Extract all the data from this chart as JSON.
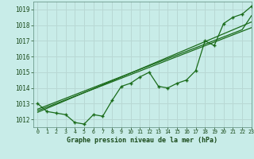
{
  "title": "Graphe pression niveau de la mer (hPa)",
  "bg_color": "#c8ece8",
  "grid_color": "#b8d8d4",
  "line_color": "#1a6b1a",
  "xlim": [
    -0.5,
    23
  ],
  "ylim": [
    1011.5,
    1019.5
  ],
  "yticks": [
    1012,
    1013,
    1014,
    1015,
    1016,
    1017,
    1018,
    1019
  ],
  "xticks": [
    0,
    1,
    2,
    3,
    4,
    5,
    6,
    7,
    8,
    9,
    10,
    11,
    12,
    13,
    14,
    15,
    16,
    17,
    18,
    19,
    20,
    21,
    22,
    23
  ],
  "main_line": [
    1013.0,
    1012.5,
    1012.4,
    1012.3,
    1011.8,
    1011.7,
    1012.3,
    1012.2,
    1013.2,
    1014.1,
    1014.3,
    1014.7,
    1015.0,
    1014.1,
    1014.0,
    1014.3,
    1014.5,
    1015.1,
    1017.0,
    1016.7,
    1018.1,
    1018.5,
    1018.7,
    1019.2
  ],
  "straight_line1": [
    1012.55,
    1012.78,
    1013.01,
    1013.24,
    1013.47,
    1013.7,
    1013.93,
    1014.16,
    1014.39,
    1014.62,
    1014.85,
    1015.08,
    1015.31,
    1015.54,
    1015.77,
    1016.0,
    1016.23,
    1016.46,
    1016.69,
    1016.92,
    1017.15,
    1017.38,
    1017.61,
    1017.84
  ],
  "straight_line2": [
    1012.45,
    1012.7,
    1012.95,
    1013.2,
    1013.45,
    1013.7,
    1013.95,
    1014.2,
    1014.45,
    1014.7,
    1014.95,
    1015.2,
    1015.45,
    1015.7,
    1015.95,
    1016.2,
    1016.45,
    1016.7,
    1016.95,
    1017.2,
    1017.45,
    1017.7,
    1017.95,
    1018.2
  ],
  "straight_line3": [
    1012.65,
    1012.88,
    1013.11,
    1013.34,
    1013.57,
    1013.8,
    1014.03,
    1014.26,
    1014.49,
    1014.72,
    1014.95,
    1015.18,
    1015.41,
    1015.64,
    1015.87,
    1016.1,
    1016.33,
    1016.56,
    1016.79,
    1017.02,
    1017.25,
    1017.48,
    1017.71,
    1018.6
  ]
}
